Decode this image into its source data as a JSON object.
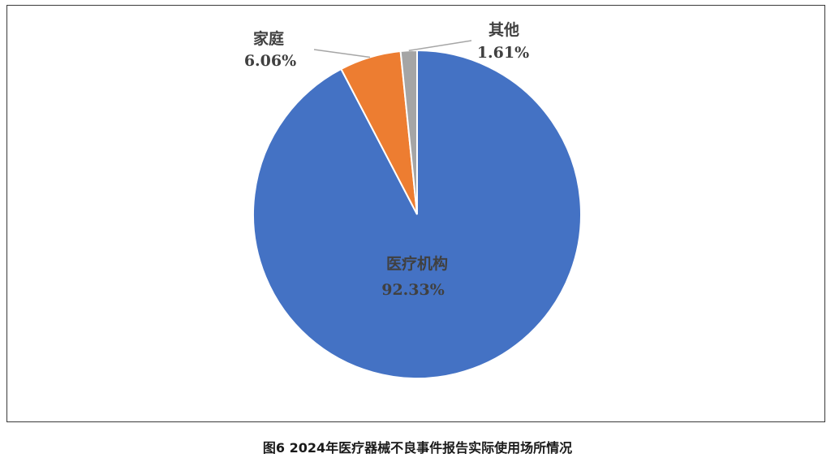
{
  "caption": "图6  2024年医疗器械不良事件报告实际使用场所情况",
  "chart_data": {
    "type": "pie",
    "title": "",
    "slices": [
      {
        "name": "医疗机构",
        "value": 92.33,
        "value_label": "92.33%",
        "color": "#4472c4",
        "label_position": "inside"
      },
      {
        "name": "家庭",
        "value": 6.06,
        "value_label": "6.06%",
        "color": "#ed7d31",
        "label_position": "outside-top-left"
      },
      {
        "name": "其他",
        "value": 1.61,
        "value_label": "1.61%",
        "color": "#a5a5a5",
        "label_position": "outside-top-right"
      }
    ],
    "start_angle": "12 o'clock",
    "direction": "clockwise",
    "legend": "none"
  }
}
